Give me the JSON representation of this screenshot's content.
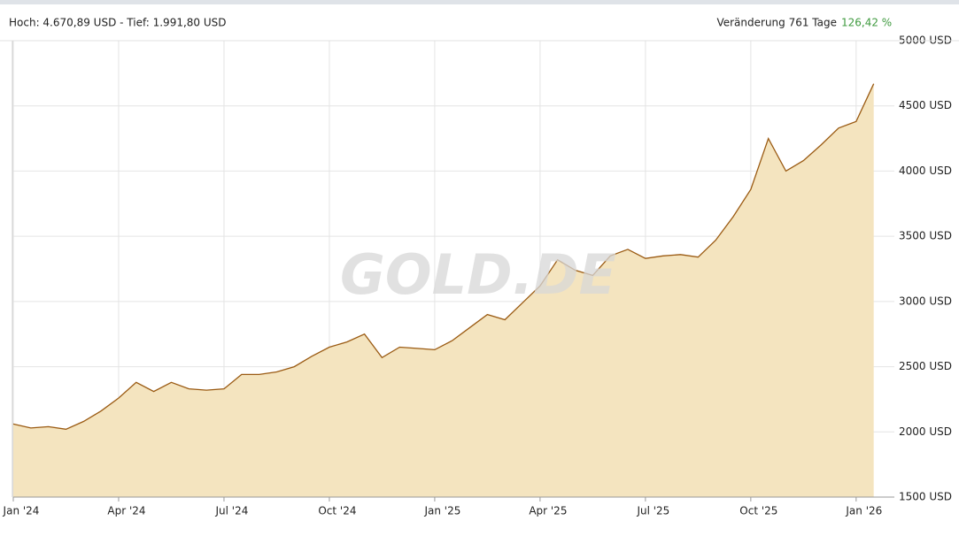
{
  "chart_data": {
    "type": "area",
    "header_left": "Hoch: 4.670,89 USD - Tief: 1.991,80 USD",
    "header_right": "Veränderung 761 Tage",
    "change": "126,42 %",
    "watermark": "GOLD.DE",
    "categories": [
      "Jan '24",
      null,
      null,
      null,
      null,
      null,
      "Apr '24",
      null,
      null,
      null,
      null,
      null,
      "Jul '24",
      null,
      null,
      null,
      null,
      null,
      "Oct '24",
      null,
      null,
      null,
      null,
      null,
      "Jan '25",
      null,
      null,
      null,
      null,
      null,
      "Apr '25",
      null,
      null,
      null,
      null,
      null,
      "Jul '25",
      null,
      null,
      null,
      null,
      null,
      "Oct '25",
      null,
      null,
      null,
      null,
      null,
      "Jan '26",
      null
    ],
    "values": [
      2060,
      2030,
      2040,
      2020,
      2080,
      2160,
      2260,
      2380,
      2310,
      2380,
      2330,
      2320,
      2330,
      2440,
      2440,
      2460,
      2500,
      2580,
      2650,
      2690,
      2750,
      2570,
      2650,
      2640,
      2630,
      2700,
      2800,
      2900,
      2860,
      2990,
      3120,
      3320,
      3240,
      3200,
      3350,
      3400,
      3330,
      3350,
      3360,
      3340,
      3470,
      3650,
      3860,
      4250,
      4000,
      4080,
      4200,
      4330,
      4380,
      4670
    ],
    "line_color": "#9a5a12",
    "fill_color": "#f4e4bf",
    "ylim": [
      1500,
      5000
    ],
    "yticks": [
      {
        "value": 1500,
        "label": "1500 USD"
      },
      {
        "value": 2000,
        "label": "2000 USD"
      },
      {
        "value": 2500,
        "label": "2500 USD"
      },
      {
        "value": 3000,
        "label": "3000 USD"
      },
      {
        "value": 3500,
        "label": "3500 USD"
      },
      {
        "value": 4000,
        "label": "4000 USD"
      },
      {
        "value": 4500,
        "label": "4500 USD"
      },
      {
        "value": 5000,
        "label": "5000 USD"
      }
    ],
    "grid": true
  }
}
